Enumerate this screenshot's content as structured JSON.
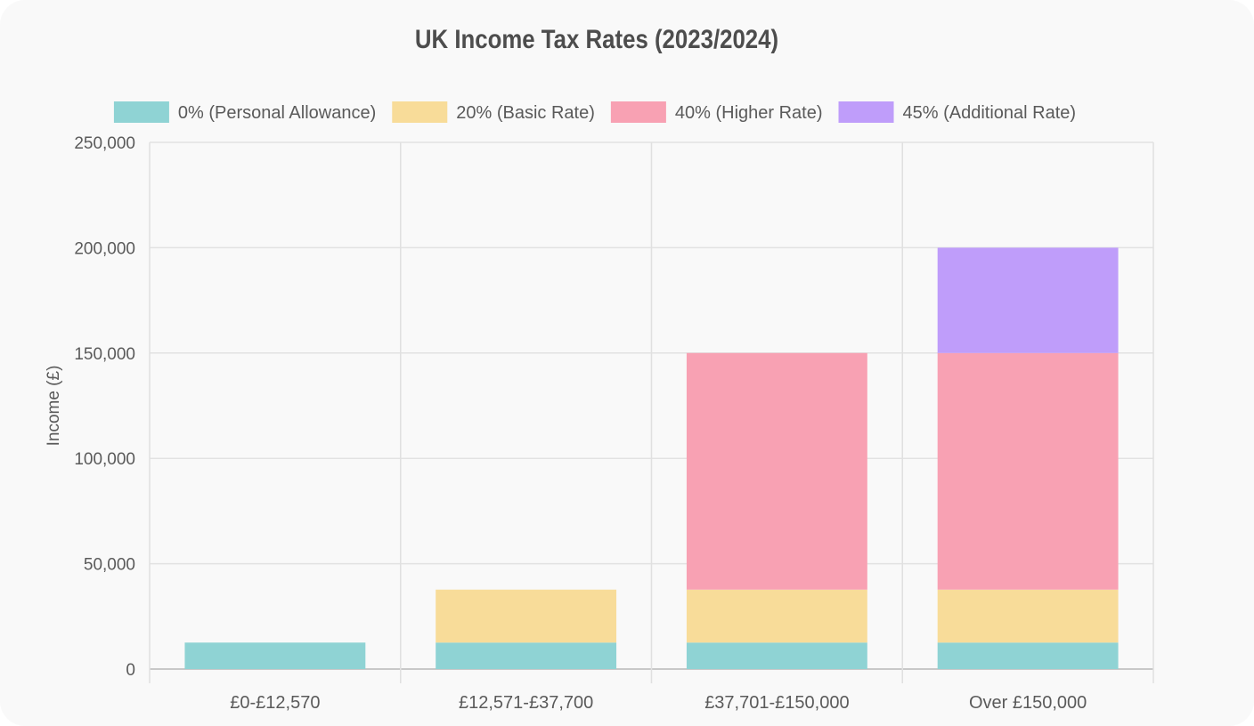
{
  "chart_data": {
    "type": "bar",
    "stacked": true,
    "title": "UK Income Tax Rates (2023/2024)",
    "xlabel": "",
    "ylabel": "Income (£)",
    "ylim": [
      0,
      250000
    ],
    "yticks": [
      0,
      50000,
      100000,
      150000,
      200000,
      250000
    ],
    "grid": true,
    "legend_position": "top",
    "categories": [
      "£0-£12,570",
      "£12,571-£37,700",
      "£37,701-£150,000",
      "Over £150,000"
    ],
    "series": [
      {
        "name": "0% (Personal Allowance)",
        "color": "#8fd3d4",
        "values": [
          12570,
          12570,
          12570,
          12570
        ]
      },
      {
        "name": "20% (Basic Rate)",
        "color": "#f8dc99",
        "values": [
          0,
          25130,
          25130,
          25130
        ]
      },
      {
        "name": "40% (Higher Rate)",
        "color": "#f8a1b3",
        "values": [
          0,
          0,
          112300,
          112300
        ]
      },
      {
        "name": "45% (Additional Rate)",
        "color": "#bf9dfa",
        "values": [
          0,
          0,
          0,
          50000
        ]
      }
    ]
  }
}
